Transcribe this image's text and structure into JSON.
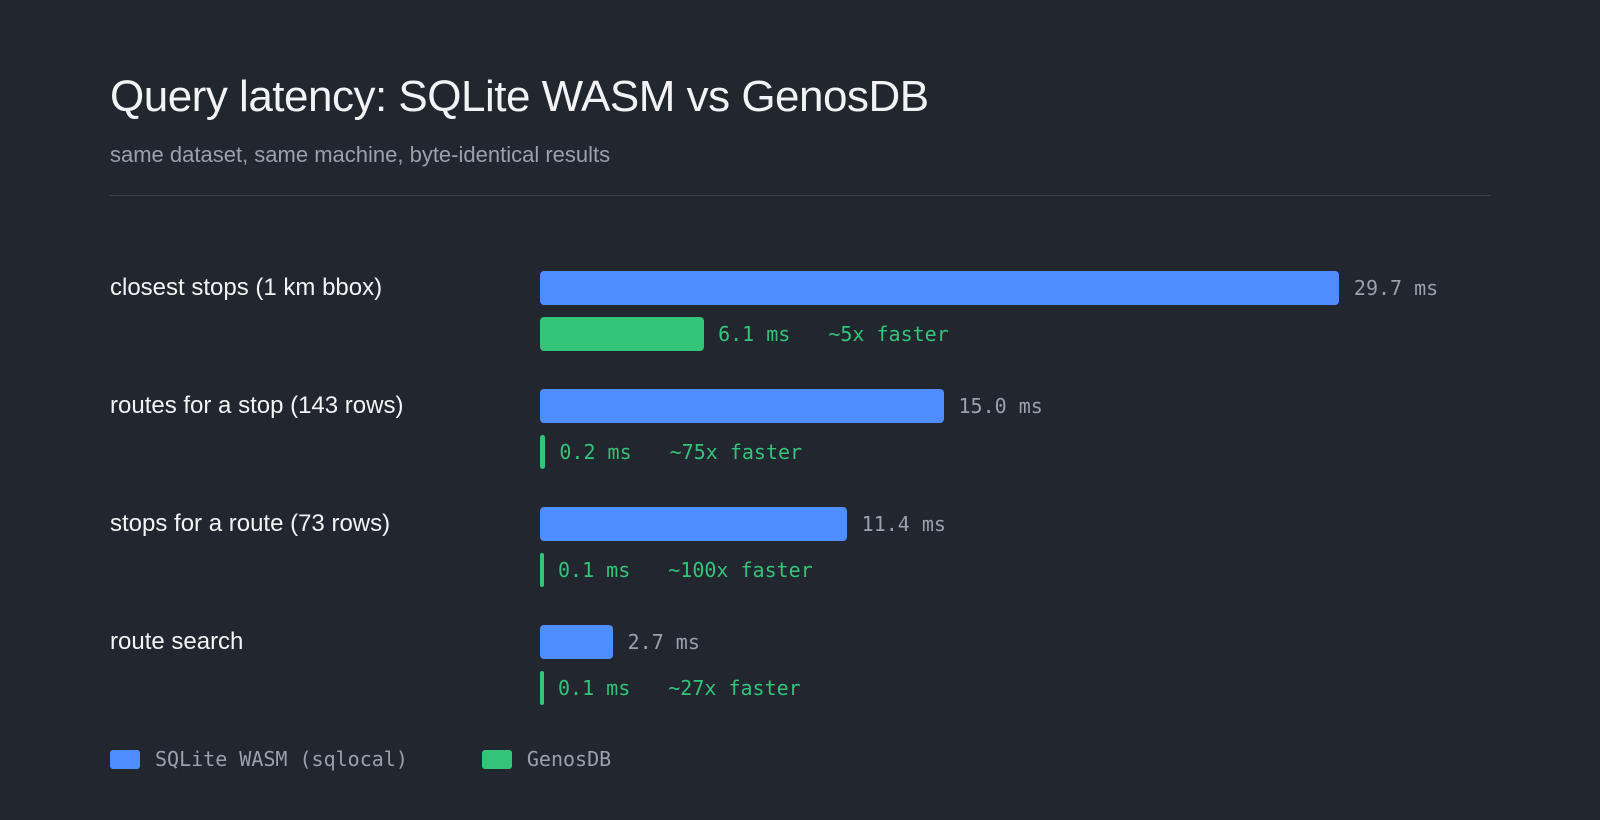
{
  "header": {
    "title": "Query latency: SQLite WASM vs GenosDB",
    "subtitle": "same dataset, same machine, byte-identical results"
  },
  "chart_data": {
    "type": "bar",
    "orientation": "horizontal",
    "categories": [
      "closest stops (1 km bbox)",
      "routes for a stop (143 rows)",
      "stops for a route (73 rows)",
      "route search"
    ],
    "series": [
      {
        "name": "SQLite WASM (sqlocal)",
        "values": [
          29.7,
          15.0,
          11.4,
          2.7
        ],
        "labels": [
          "29.7 ms",
          "15.0 ms",
          "11.4 ms",
          "2.7 ms"
        ],
        "color": "#4d8dff"
      },
      {
        "name": "GenosDB",
        "values": [
          6.1,
          0.2,
          0.1,
          0.1
        ],
        "labels": [
          "6.1 ms",
          "0.2 ms",
          "0.1 ms",
          "0.1 ms"
        ],
        "speedup_labels": [
          "~5x faster",
          "~75x faster",
          "~100x faster",
          "~27x faster"
        ],
        "color": "#33c47a"
      }
    ],
    "xlabel": "",
    "ylabel": "",
    "unit": "ms",
    "grid": false,
    "legend_position": "bottom-left"
  }
}
